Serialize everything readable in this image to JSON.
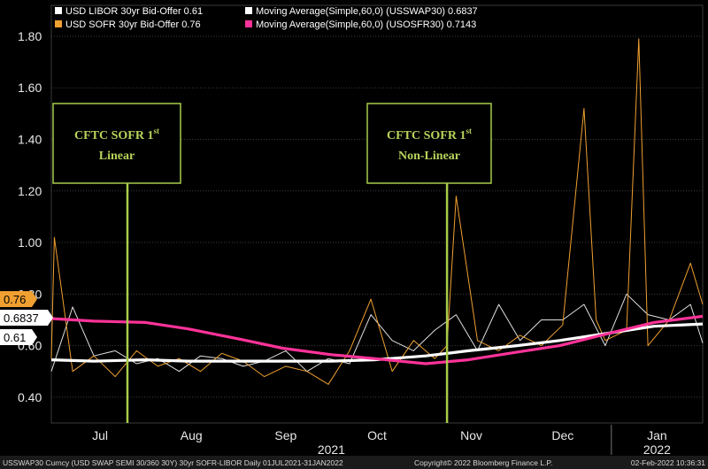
{
  "chart_data": {
    "type": "line",
    "title": "",
    "xlabel": "",
    "ylabel": "",
    "ylim": [
      0.3,
      1.92
    ],
    "yticks": [
      "0.40",
      "0.60",
      "0.80",
      "1.00",
      "1.20",
      "1.40",
      "1.60",
      "1.80"
    ],
    "x_range": [
      "2021-07-01",
      "2022-01-31"
    ],
    "month_labels": [
      {
        "label": "Jul",
        "date": "2021-07-17"
      },
      {
        "label": "Aug",
        "date": "2021-08-16"
      },
      {
        "label": "Sep",
        "date": "2021-09-16"
      },
      {
        "label": "Oct",
        "date": "2021-10-16"
      },
      {
        "label": "Nov",
        "date": "2021-11-16"
      },
      {
        "label": "Dec",
        "date": "2021-12-16"
      },
      {
        "label": "Jan",
        "date": "2022-01-16"
      }
    ],
    "year_labels": [
      {
        "label": "2021",
        "date": "2021-10-01"
      },
      {
        "label": "2022",
        "date": "2022-01-16"
      }
    ],
    "year_divider": "2022-01-01",
    "legend_placement": "top-left",
    "legend": [
      {
        "text": "USD LIBOR 30yr Bid-Offer 0.61",
        "color": "#ffffff"
      },
      {
        "text": "USD SOFR 30yr Bid-Offer  0.76",
        "color": "#f0a030"
      },
      {
        "text": "Moving Average(Simple,60,0) (USSWAP30) 0.6837",
        "color": "#ffffff"
      },
      {
        "text": "Moving Average(Simple,60,0) (USOSFR30) 0.7143",
        "color": "#ff3399"
      }
    ],
    "series": [
      {
        "name": "USD LIBOR 30yr Bid-Offer",
        "color": "#e0e0e0",
        "x": [
          "2021-07-01",
          "2021-07-08",
          "2021-07-15",
          "2021-07-22",
          "2021-07-29",
          "2021-08-05",
          "2021-08-12",
          "2021-08-19",
          "2021-08-26",
          "2021-09-02",
          "2021-09-09",
          "2021-09-16",
          "2021-09-23",
          "2021-09-30",
          "2021-10-07",
          "2021-10-14",
          "2021-10-21",
          "2021-10-28",
          "2021-11-04",
          "2021-11-11",
          "2021-11-18",
          "2021-11-25",
          "2021-12-02",
          "2021-12-09",
          "2021-12-16",
          "2021-12-23",
          "2021-12-30",
          "2022-01-06",
          "2022-01-13",
          "2022-01-20",
          "2022-01-27",
          "2022-01-31"
        ],
        "values": [
          0.5,
          0.75,
          0.56,
          0.58,
          0.53,
          0.55,
          0.5,
          0.56,
          0.55,
          0.52,
          0.54,
          0.58,
          0.5,
          0.55,
          0.53,
          0.72,
          0.62,
          0.58,
          0.66,
          0.72,
          0.58,
          0.76,
          0.62,
          0.7,
          0.7,
          0.76,
          0.6,
          0.8,
          0.72,
          0.7,
          0.76,
          0.61
        ]
      },
      {
        "name": "USD SOFR 30yr Bid-Offer",
        "color": "#f0a030",
        "x": [
          "2021-07-01",
          "2021-07-02",
          "2021-07-08",
          "2021-07-15",
          "2021-07-22",
          "2021-07-29",
          "2021-08-05",
          "2021-08-12",
          "2021-08-19",
          "2021-08-26",
          "2021-09-02",
          "2021-09-09",
          "2021-09-16",
          "2021-09-23",
          "2021-09-30",
          "2021-10-07",
          "2021-10-14",
          "2021-10-21",
          "2021-10-28",
          "2021-11-04",
          "2021-11-08",
          "2021-11-11",
          "2021-11-18",
          "2021-11-25",
          "2021-12-02",
          "2021-12-09",
          "2021-12-16",
          "2021-12-23",
          "2021-12-27",
          "2021-12-30",
          "2022-01-06",
          "2022-01-10",
          "2022-01-13",
          "2022-01-20",
          "2022-01-27",
          "2022-01-31"
        ],
        "values": [
          0.55,
          1.02,
          0.5,
          0.56,
          0.48,
          0.58,
          0.52,
          0.55,
          0.5,
          0.57,
          0.54,
          0.48,
          0.52,
          0.5,
          0.45,
          0.58,
          0.78,
          0.5,
          0.62,
          0.55,
          0.6,
          1.18,
          0.62,
          0.58,
          0.64,
          0.6,
          0.68,
          1.52,
          0.7,
          0.62,
          0.66,
          1.79,
          0.6,
          0.7,
          0.92,
          0.76
        ]
      },
      {
        "name": "Moving Average(Simple,60,0) (USSWAP30)",
        "color": "#ffffff",
        "x": [
          "2021-07-01",
          "2021-07-15",
          "2021-08-01",
          "2021-08-15",
          "2021-09-01",
          "2021-09-15",
          "2021-10-01",
          "2021-10-15",
          "2021-11-01",
          "2021-11-15",
          "2021-12-01",
          "2021-12-15",
          "2022-01-01",
          "2022-01-15",
          "2022-01-31"
        ],
        "values": [
          0.545,
          0.54,
          0.545,
          0.54,
          0.54,
          0.54,
          0.54,
          0.545,
          0.56,
          0.58,
          0.6,
          0.62,
          0.65,
          0.675,
          0.684
        ]
      },
      {
        "name": "Moving Average(Simple,60,0) (USOSFR30)",
        "color": "#ff3399",
        "x": [
          "2021-07-01",
          "2021-07-15",
          "2021-08-01",
          "2021-08-15",
          "2021-09-01",
          "2021-09-15",
          "2021-10-01",
          "2021-10-15",
          "2021-11-01",
          "2021-11-15",
          "2021-12-01",
          "2021-12-15",
          "2022-01-01",
          "2022-01-15",
          "2022-01-31"
        ],
        "values": [
          0.705,
          0.695,
          0.69,
          0.665,
          0.625,
          0.59,
          0.565,
          0.55,
          0.53,
          0.545,
          0.575,
          0.6,
          0.65,
          0.69,
          0.714
        ]
      }
    ],
    "annotations": [
      {
        "line1": "CFTC SOFR 1",
        "sup": "st",
        "line2": "Linear",
        "date": "2021-07-26"
      },
      {
        "line1": "CFTC SOFR 1",
        "sup": "st",
        "line2": "Non-Linear",
        "date": "2021-11-08"
      }
    ],
    "value_badges": [
      {
        "text": "0.76",
        "value": 0.76,
        "bg": "#f0a030",
        "fg": "#000000"
      },
      {
        "text": "0.6837",
        "value": 0.6837,
        "bg": "#ffffff",
        "fg": "#000000"
      },
      {
        "text": "0.61",
        "value": 0.61,
        "bg": "#ffffff",
        "fg": "#000000"
      }
    ]
  },
  "footer": {
    "left": "USSWAP30 Curncy (USD SWAP SEMI 30/360 30Y) 30yr SOFR-LIBOR  Daily 01JUL2021-31JAN2022",
    "center": "Copyright© 2022 Bloomberg Finance L.P.",
    "right": "02-Feb-2022 10:36:31"
  }
}
